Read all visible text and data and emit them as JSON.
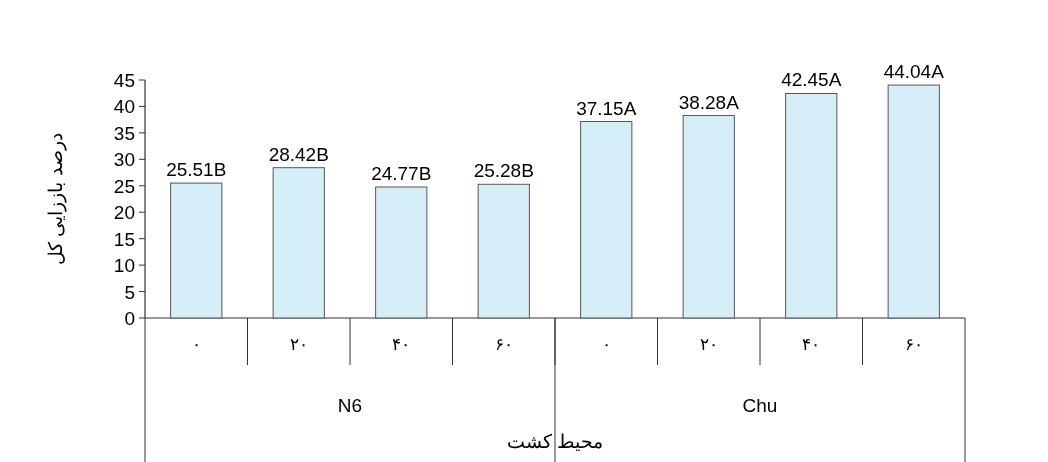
{
  "chart_data": {
    "type": "bar",
    "ylabel": "درصد باززایی کل",
    "xlabel": "محیط کشت",
    "categories": [
      "۰",
      "۲۰",
      "۴۰",
      "۶۰",
      "۰",
      "۲۰",
      "۴۰",
      "۶۰"
    ],
    "values": [
      25.51,
      28.42,
      24.77,
      25.28,
      37.15,
      38.28,
      42.45,
      44.04
    ],
    "value_labels": [
      "25.51B",
      "28.42B",
      "24.77B",
      "25.28B",
      "37.15A",
      "38.28A",
      "42.45A",
      "44.04A"
    ],
    "color": "#d6eef8",
    "ylim": [
      0,
      45
    ],
    "yticks": [
      0,
      5,
      10,
      15,
      20,
      25,
      30,
      35,
      40,
      45
    ],
    "annotations": [
      "N6",
      "Chu"
    ]
  }
}
